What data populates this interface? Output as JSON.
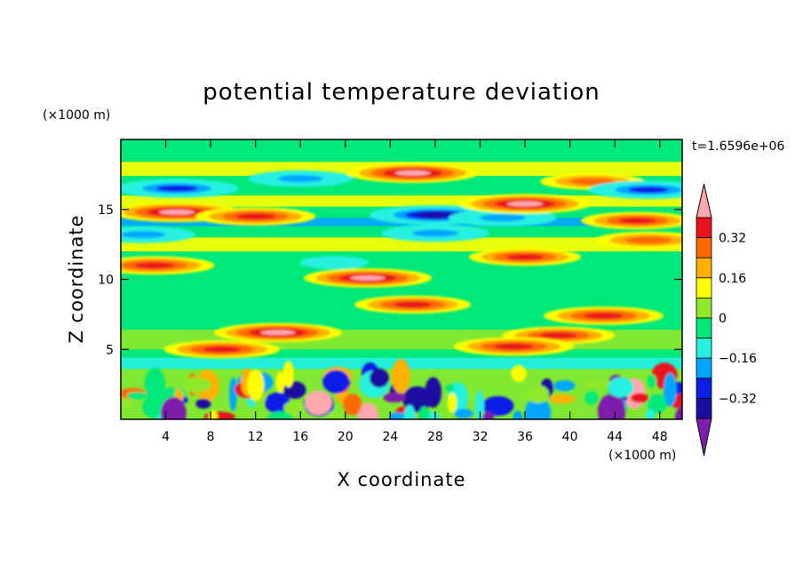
{
  "chart_data": {
    "type": "heatmap",
    "title": "potential temperature deviation",
    "xlabel": "X coordinate",
    "ylabel": "Z coordinate",
    "x_unit": "(×1000 m)",
    "y_unit": "(×1000 m)",
    "time_label": "t=1.6596e+06",
    "xlim": [
      0,
      50
    ],
    "ylim": [
      0,
      20
    ],
    "x_ticks": [
      4,
      8,
      12,
      16,
      20,
      24,
      28,
      32,
      36,
      40,
      44,
      48
    ],
    "y_ticks": [
      5,
      10,
      15
    ],
    "colorbar": {
      "levels": [
        -0.4,
        -0.32,
        -0.24,
        -0.16,
        -0.08,
        0,
        0.08,
        0.16,
        0.24,
        0.32,
        0.4
      ],
      "tick_labels": [
        "0.32",
        "0.16",
        "0",
        "−0.16",
        "−0.32"
      ],
      "tick_values": [
        0.32,
        0.16,
        0,
        -0.16,
        -0.32
      ],
      "colors": [
        "#7f1dac",
        "#1c0fa0",
        "#0a1fe6",
        "#00a6ff",
        "#26f0e0",
        "#00e87a",
        "#8fe82a",
        "#ffff00",
        "#ffb000",
        "#ff6a00",
        "#e8121c",
        "#ffa8ad"
      ],
      "extend": "both"
    },
    "features": [
      {
        "x": 5,
        "z": 16.5,
        "value": -0.38
      },
      {
        "x": 5,
        "z": 14.8,
        "value": 0.42
      },
      {
        "x": 12,
        "z": 14.5,
        "value": 0.36
      },
      {
        "x": 16,
        "z": 17.2,
        "value": -0.28
      },
      {
        "x": 26,
        "z": 17.6,
        "value": 0.42
      },
      {
        "x": 28,
        "z": 14.6,
        "value": -0.42
      },
      {
        "x": 34,
        "z": 14.4,
        "value": -0.3
      },
      {
        "x": 36,
        "z": 15.4,
        "value": 0.42
      },
      {
        "x": 42,
        "z": 17.0,
        "value": 0.28
      },
      {
        "x": 47,
        "z": 16.4,
        "value": -0.36
      },
      {
        "x": 46,
        "z": 14.2,
        "value": 0.32
      },
      {
        "x": 2,
        "z": 13.2,
        "value": -0.28
      },
      {
        "x": 28,
        "z": 13.3,
        "value": -0.3
      },
      {
        "x": 47,
        "z": 12.8,
        "value": 0.3
      },
      {
        "x": 3,
        "z": 11.0,
        "value": 0.36
      },
      {
        "x": 19,
        "z": 11.2,
        "value": -0.1
      },
      {
        "x": 36,
        "z": 11.6,
        "value": 0.32
      },
      {
        "x": 22,
        "z": 10.1,
        "value": 0.4
      },
      {
        "x": 26,
        "z": 8.2,
        "value": 0.34
      },
      {
        "x": 43,
        "z": 7.4,
        "value": 0.36
      },
      {
        "x": 14,
        "z": 6.2,
        "value": 0.4
      },
      {
        "x": 39,
        "z": 6.0,
        "value": 0.32
      },
      {
        "x": 9,
        "z": 5.0,
        "value": 0.34
      },
      {
        "x": 35,
        "z": 5.2,
        "value": 0.36
      }
    ]
  }
}
